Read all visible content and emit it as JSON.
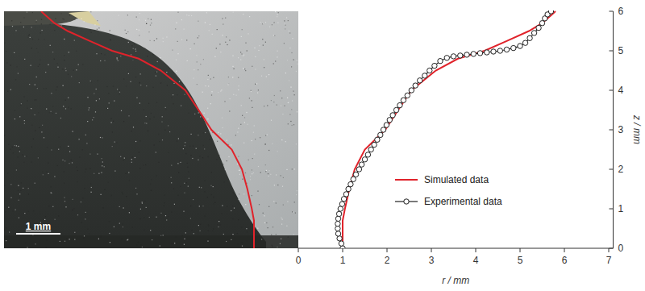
{
  "chart_data": {
    "type": "line",
    "x_label": "r / mm",
    "y_label": "z / mm",
    "xlim": [
      0,
      7.1
    ],
    "ylim": [
      0,
      6
    ],
    "xticks": [
      0,
      1,
      2,
      3,
      4,
      5,
      6,
      7
    ],
    "yticks": [
      0,
      1,
      2,
      3,
      4,
      5,
      6
    ],
    "grid": false,
    "legend": "right",
    "scale_bar": {
      "label": "1 mm",
      "length": 1
    },
    "series": [
      {
        "name": "Simulated data",
        "color": "#e0232b",
        "marker": "none",
        "line_style": "solid",
        "x": [
          1.0,
          1.0,
          1.05,
          1.15,
          1.27,
          1.5,
          1.96,
          2.25,
          2.55,
          3.1,
          3.6,
          4.2,
          4.7,
          5.2,
          5.5,
          5.7,
          5.8
        ],
        "values": [
          0,
          0.7,
          1.0,
          1.5,
          2.0,
          2.5,
          3.0,
          3.5,
          4.0,
          4.5,
          4.8,
          5.0,
          5.25,
          5.5,
          5.7,
          5.9,
          6.0
        ]
      },
      {
        "name": "Experimental data",
        "color": "#222222",
        "marker": "circle",
        "line_style": "solid",
        "x": [
          1.0,
          0.97,
          0.93,
          0.9,
          0.89,
          0.89,
          0.9,
          0.92,
          0.95,
          0.99,
          1.03,
          1.08,
          1.13,
          1.18,
          1.24,
          1.3,
          1.37,
          1.43,
          1.5,
          1.57,
          1.64,
          1.71,
          1.78,
          1.85,
          1.92,
          1.99,
          2.06,
          2.13,
          2.21,
          2.29,
          2.37,
          2.46,
          2.55,
          2.64,
          2.74,
          2.85,
          2.96,
          3.07,
          3.2,
          3.35,
          3.5,
          3.65,
          3.8,
          3.95,
          4.1,
          4.25,
          4.4,
          4.55,
          4.7,
          4.85,
          5.0,
          5.12,
          5.22,
          5.32,
          5.42,
          5.5,
          5.56,
          5.62,
          5.7
        ],
        "values": [
          0.0,
          0.12,
          0.25,
          0.37,
          0.5,
          0.62,
          0.75,
          0.87,
          1.0,
          1.12,
          1.25,
          1.37,
          1.5,
          1.62,
          1.75,
          1.87,
          2.0,
          2.12,
          2.25,
          2.37,
          2.5,
          2.62,
          2.75,
          2.87,
          3.0,
          3.12,
          3.25,
          3.37,
          3.5,
          3.62,
          3.75,
          3.87,
          4.0,
          4.12,
          4.25,
          4.37,
          4.5,
          4.62,
          4.74,
          4.82,
          4.86,
          4.88,
          4.9,
          4.92,
          4.94,
          4.96,
          4.98,
          5.0,
          5.03,
          5.07,
          5.12,
          5.2,
          5.32,
          5.45,
          5.58,
          5.7,
          5.82,
          5.92,
          6.0
        ]
      }
    ]
  }
}
